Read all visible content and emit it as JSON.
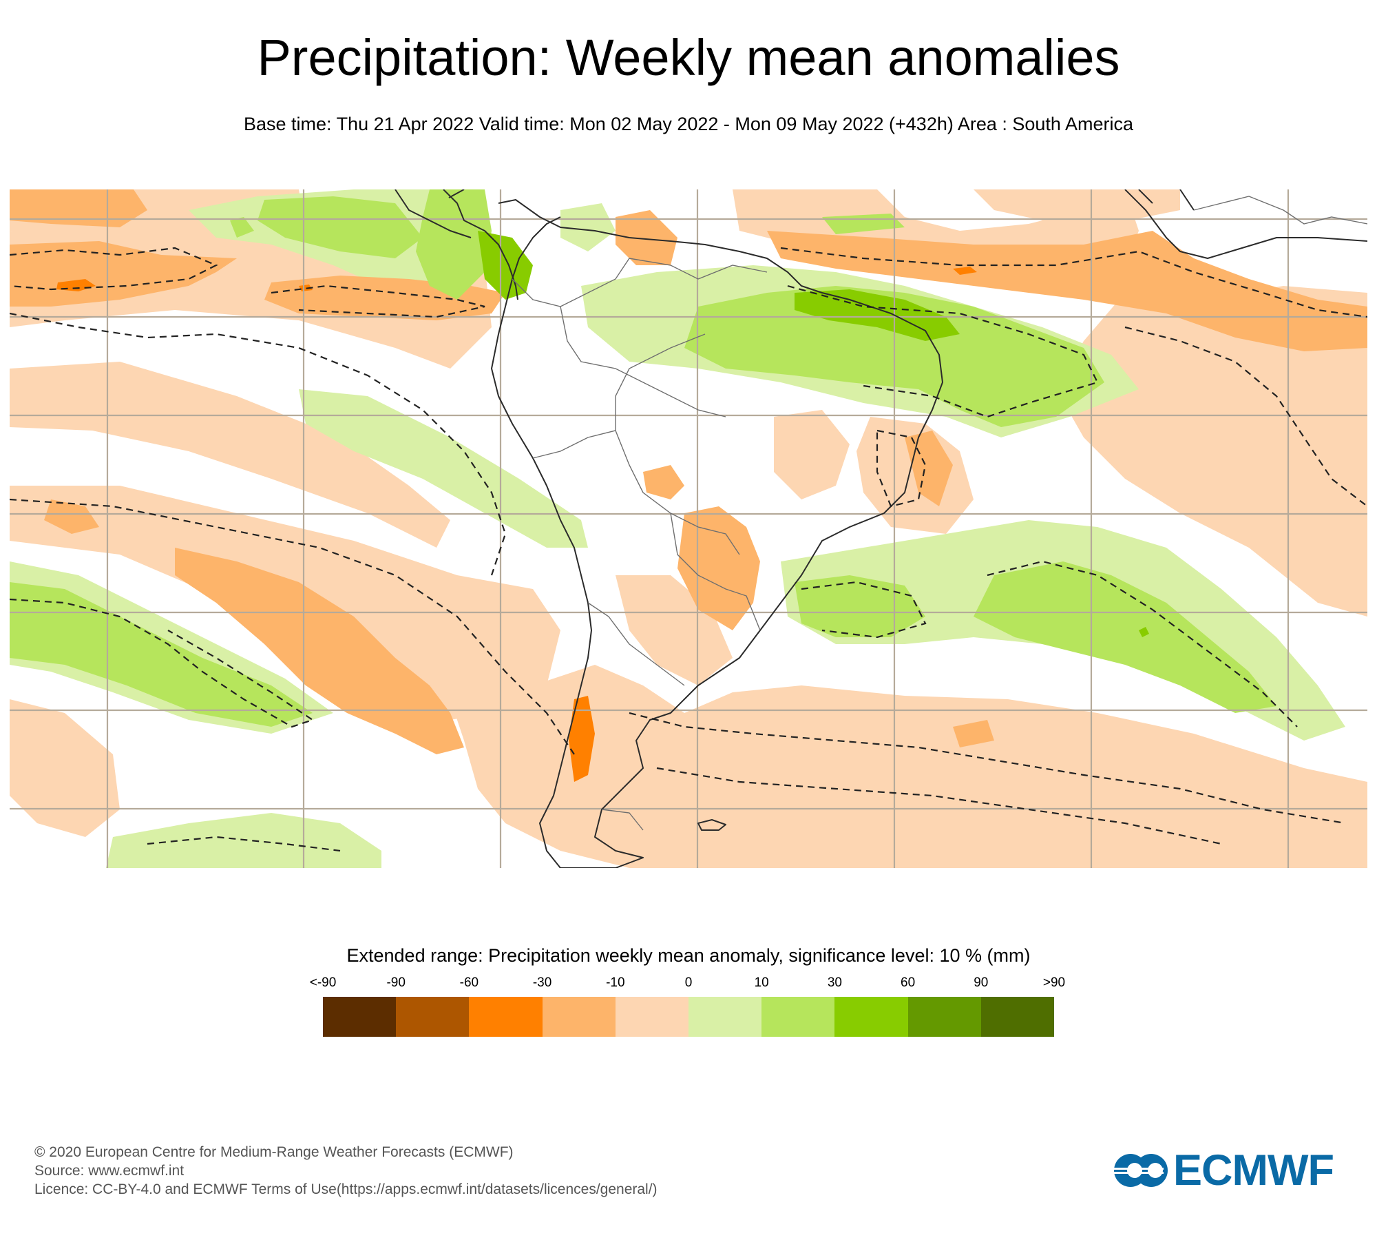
{
  "header": {
    "title": "Precipitation: Weekly mean anomalies",
    "subtitle": "Base time: Thu 21 Apr 2022 Valid time: Mon 02 May 2022 - Mon 09 May 2022 (+432h) Area : South America"
  },
  "map": {
    "area": "South America",
    "colors": {
      "background": "#ffffff",
      "grid": "#b5aa9a",
      "coast": "#2b2b2b",
      "border": "#6f6f6f",
      "contour": "#222222"
    },
    "regions": [
      {
        "name": "tropical-north-atlantic-dry-band",
        "class": "-30 to -10",
        "color": "#fdb46a"
      },
      {
        "name": "east-pacific-dry-band",
        "class": "-30 to -10",
        "color": "#fdb46a"
      },
      {
        "name": "southeast-pacific-dry-band",
        "class": "-30 to -10",
        "color": "#fdb46a"
      },
      {
        "name": "paraguay-dry-patch",
        "class": "-30 to -10",
        "color": "#fdb46a"
      },
      {
        "name": "chile-dry-core",
        "class": "-60 to -30",
        "color": "#ff8000"
      },
      {
        "name": "north-brazil-wet-band",
        "class": "10 to 30",
        "color": "#b6e55c"
      },
      {
        "name": "colombia-wet-core",
        "class": "30 to 60",
        "color": "#88cc00"
      },
      {
        "name": "south-atlantic-wet-band",
        "class": "10 to 30",
        "color": "#b6e55c"
      },
      {
        "name": "south-pacific-wet-band",
        "class": "10 to 30",
        "color": "#b6e55c"
      },
      {
        "name": "subtropical-pacific-wet-band",
        "class": "0 to 10",
        "color": "#d9f0a6"
      }
    ]
  },
  "legend": {
    "title": "Extended range: Precipitation weekly mean anomaly, significance level: 10 % (mm)",
    "ticks": [
      "<-90",
      "-90",
      "-60",
      "-30",
      "-10",
      "0",
      "10",
      "30",
      "60",
      "90",
      ">90"
    ],
    "colors": [
      "#5c2d00",
      "#ad5600",
      "#ff8000",
      "#fdb46a",
      "#fdd6b2",
      "#d9f0a6",
      "#b6e55c",
      "#88cc00",
      "#649900",
      "#4f6e00"
    ]
  },
  "footer": {
    "copyright": "© 2020 European Centre for Medium-Range Weather Forecasts (ECMWF)",
    "source": "Source: www.ecmwf.int",
    "licence": "Licence: CC-BY-4.0 and ECMWF Terms of Use(https://apps.ecmwf.int/datasets/licences/general/)"
  },
  "logo": {
    "text": "ECMWF",
    "color": "#0a6aa6"
  }
}
